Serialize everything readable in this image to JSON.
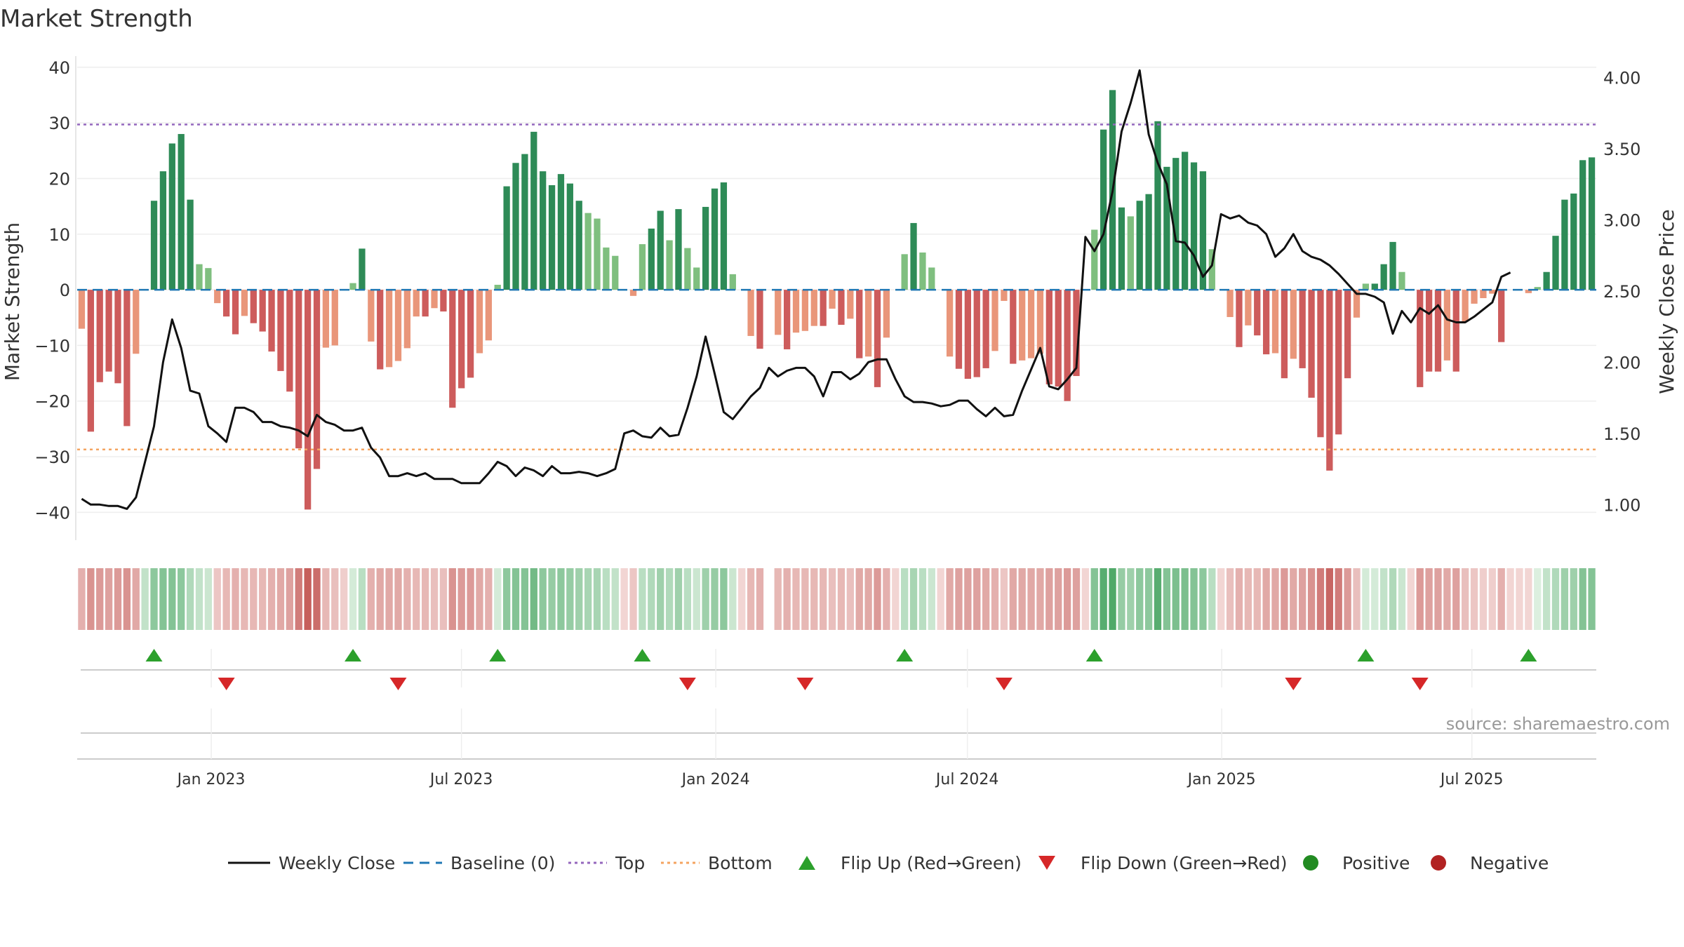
{
  "chart_data": {
    "type": "bar",
    "title": "Market Strength",
    "ylabel_left": "Market Strength",
    "ylabel_right": "Weekly Close Price",
    "source": "source: sharemaestro.com",
    "ylim_left": [
      -45,
      42
    ],
    "ylim_right": [
      0.75,
      4.15
    ],
    "yticks_left": [
      "40",
      "30",
      "20",
      "10",
      "0",
      "−10",
      "−20",
      "−30",
      "−40"
    ],
    "yticks_left_values": [
      40,
      30,
      20,
      10,
      0,
      -10,
      -20,
      -30,
      -40
    ],
    "yticks_right": [
      "4.00",
      "3.50",
      "3.00",
      "2.50",
      "2.00",
      "1.50",
      "1.00"
    ],
    "yticks_right_values": [
      4.0,
      3.5,
      3.0,
      2.5,
      2.0,
      1.5,
      1.0
    ],
    "top_level": 29.7,
    "bottom_level": -28.7,
    "x_start": "2022-09-26",
    "x_end": "2025-09-29",
    "x_ticks": [
      "Jan 2023",
      "Jul 2023",
      "Jan 2024",
      "Jul 2024",
      "Jan 2025",
      "Jul 2025"
    ],
    "x_tick_dates": [
      "2023-01-01",
      "2023-07-01",
      "2024-01-01",
      "2024-07-01",
      "2025-01-01",
      "2025-07-01"
    ],
    "strength": [
      -7,
      -25.5,
      -16.6,
      -14.7,
      -16.8,
      -24.5,
      -11.5,
      0,
      16,
      21.3,
      26.3,
      28,
      16.2,
      4.6,
      3.9,
      -2.4,
      -4.8,
      -8,
      -4.7,
      -6,
      -7.5,
      -11.1,
      -14.6,
      -18.3,
      -28.5,
      -39.5,
      -32.2,
      -10.4,
      -10,
      0,
      1.2,
      7.4,
      -9.3,
      -14.3,
      -13.9,
      -12.8,
      -10.5,
      -4.8,
      -4.8,
      -3.3,
      -3.9,
      -21.2,
      -17.7,
      -15.8,
      -11.4,
      -9.1,
      0.9,
      18.6,
      22.8,
      24.4,
      28.4,
      21.3,
      18.8,
      20.8,
      19.1,
      16,
      13.8,
      12.8,
      7.6,
      6.1,
      0,
      -1.1,
      8.2,
      11,
      14.2,
      8.9,
      14.5,
      7.5,
      4,
      14.9,
      18.2,
      19.3,
      2.8,
      0,
      -8.3,
      -10.6,
      0,
      -8.1,
      -10.7,
      -7.7,
      -7.4,
      -6.5,
      -6.5,
      -3.4,
      -6.3,
      -5.2,
      -12.3,
      -12,
      -17.5,
      -8.6,
      0,
      6.4,
      12,
      6.7,
      4,
      0,
      -12,
      -14.2,
      -16,
      -15.7,
      -14.1,
      -11,
      -2,
      -13.3,
      -12.7,
      -12.3,
      -11.5,
      -17,
      -17.4,
      -20,
      -15.5,
      0,
      10.8,
      28.8,
      35.9,
      14.8,
      13.2,
      16,
      17.2,
      30.3,
      22.1,
      23.7,
      24.8,
      22.9,
      21.3,
      7.3,
      0,
      -4.9,
      -10.3,
      -6.4,
      -8.2,
      -11.6,
      -11.4,
      -15.9,
      -12.4,
      -14.1,
      -19.4,
      -26.5,
      -32.5,
      -26,
      -15.9,
      -5,
      1.1,
      1.1,
      4.6,
      8.6,
      3.2,
      0,
      -17.5,
      -14.7,
      -14.7,
      -12.7,
      -14.7,
      -5.7,
      -2.5,
      -1.5,
      -0.7,
      -9.4,
      0,
      0,
      -0.6,
      0.5,
      3.2,
      9.7,
      16.2,
      17.3,
      23.3,
      23.8
    ],
    "weekly_close": [
      1.04,
      1.0,
      1.0,
      0.99,
      0.99,
      0.97,
      1.05,
      1.3,
      1.55,
      2.0,
      2.3,
      2.1,
      1.8,
      1.78,
      1.55,
      1.5,
      1.44,
      1.68,
      1.68,
      1.65,
      1.58,
      1.58,
      1.55,
      1.54,
      1.52,
      1.48,
      1.63,
      1.58,
      1.56,
      1.52,
      1.52,
      1.54,
      1.4,
      1.33,
      1.2,
      1.2,
      1.22,
      1.2,
      1.22,
      1.18,
      1.18,
      1.18,
      1.15,
      1.15,
      1.15,
      1.22,
      1.3,
      1.27,
      1.2,
      1.26,
      1.24,
      1.2,
      1.27,
      1.22,
      1.22,
      1.23,
      1.22,
      1.2,
      1.22,
      1.25,
      1.5,
      1.52,
      1.48,
      1.47,
      1.54,
      1.48,
      1.49,
      1.68,
      1.9,
      2.18,
      1.92,
      1.65,
      1.6,
      1.68,
      1.76,
      1.82,
      1.96,
      1.9,
      1.94,
      1.96,
      1.96,
      1.9,
      1.76,
      1.93,
      1.93,
      1.88,
      1.92,
      2.0,
      2.02,
      2.02,
      1.88,
      1.76,
      1.72,
      1.72,
      1.71,
      1.69,
      1.7,
      1.73,
      1.73,
      1.67,
      1.62,
      1.68,
      1.62,
      1.63,
      1.8,
      1.95,
      2.1,
      1.83,
      1.81,
      1.88,
      1.96,
      2.88,
      2.78,
      2.9,
      3.2,
      3.62,
      3.82,
      4.05,
      3.6,
      3.4,
      3.25,
      2.85,
      2.84,
      2.75,
      2.6,
      2.68,
      3.04,
      3.01,
      3.03,
      2.98,
      2.96,
      2.9,
      2.74,
      2.8,
      2.9,
      2.78,
      2.74,
      2.72,
      2.68,
      2.62,
      2.55,
      2.48,
      2.48,
      2.46,
      2.42,
      2.2,
      2.36,
      2.28,
      2.38,
      2.34,
      2.4,
      2.3,
      2.28,
      2.28,
      2.32,
      2.37,
      2.42,
      2.6,
      2.63
    ],
    "heat_strip": [
      -0.35,
      -0.55,
      -0.5,
      -0.45,
      -0.5,
      -0.55,
      -0.4,
      0.25,
      0.55,
      0.6,
      0.6,
      0.55,
      0.35,
      0.25,
      0.2,
      -0.2,
      -0.3,
      -0.35,
      -0.3,
      -0.3,
      -0.3,
      -0.35,
      -0.4,
      -0.45,
      -0.7,
      -0.9,
      -0.8,
      -0.3,
      -0.25,
      -0.15,
      0.15,
      0.3,
      -0.35,
      -0.4,
      -0.4,
      -0.4,
      -0.35,
      -0.3,
      -0.3,
      -0.25,
      -0.25,
      -0.55,
      -0.5,
      -0.5,
      -0.4,
      -0.35,
      0.15,
      0.55,
      0.6,
      0.6,
      0.7,
      0.55,
      0.5,
      0.55,
      0.5,
      0.45,
      0.4,
      0.4,
      0.3,
      0.25,
      -0.1,
      -0.2,
      0.3,
      0.35,
      0.45,
      0.35,
      0.45,
      0.3,
      0.2,
      0.45,
      0.5,
      0.55,
      0.2,
      -0.1,
      -0.3,
      -0.35,
      0,
      -0.3,
      -0.35,
      -0.3,
      -0.3,
      -0.3,
      -0.3,
      -0.25,
      -0.3,
      -0.25,
      -0.4,
      -0.4,
      -0.5,
      -0.35,
      -0.1,
      0.3,
      0.4,
      0.3,
      0.2,
      -0.1,
      -0.4,
      -0.45,
      -0.45,
      -0.45,
      -0.4,
      -0.35,
      -0.2,
      -0.4,
      -0.4,
      -0.4,
      -0.4,
      -0.45,
      -0.45,
      -0.5,
      -0.45,
      -0.1,
      0.6,
      0.85,
      0.9,
      0.5,
      0.45,
      0.55,
      0.55,
      0.85,
      0.6,
      0.65,
      0.65,
      0.6,
      0.55,
      0.3,
      -0.1,
      -0.25,
      -0.35,
      -0.3,
      -0.3,
      -0.4,
      -0.4,
      -0.5,
      -0.4,
      -0.45,
      -0.55,
      -0.7,
      -0.85,
      -0.7,
      -0.5,
      -0.25,
      0.15,
      0.15,
      0.25,
      0.35,
      0.2,
      -0.1,
      -0.5,
      -0.45,
      -0.45,
      -0.4,
      -0.45,
      -0.25,
      -0.2,
      -0.15,
      -0.15,
      -0.35,
      -0.1,
      -0.1,
      -0.1,
      0.1,
      0.25,
      0.35,
      0.45,
      0.45,
      0.6,
      0.6
    ],
    "flip_up_weeks": [
      8,
      30,
      46,
      62,
      91,
      112,
      142,
      160
    ],
    "flip_down_weeks": [
      16,
      35,
      67,
      80,
      102,
      134,
      148
    ],
    "legend": [
      "Weekly Close",
      "Baseline (0)",
      "Top",
      "Bottom",
      "Flip Up (Red→Green)",
      "Flip Down (Green→Red)",
      "Positive",
      "Negative"
    ],
    "colors": {
      "strong_positive": "#2e8b57",
      "weak_positive": "#7fbf7f",
      "strong_negative": "#cd5c5c",
      "weak_negative": "#e9967a",
      "close_line": "#111111",
      "baseline": "#1f77b4",
      "top": "#9467bd",
      "bottom": "#f4a460",
      "flip_up": "#2ca02c",
      "flip_down": "#d62728",
      "positive_dot": "#228b22",
      "negative_dot": "#b22222"
    }
  }
}
